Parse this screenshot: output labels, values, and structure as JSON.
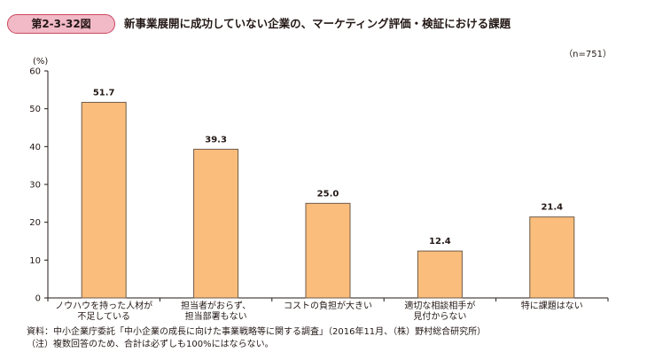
{
  "header": {
    "figure_number": "第2-3-32図",
    "title": "新事業展開に成功していない企業の、マーケティング評価・検証における課題"
  },
  "colors": {
    "bar": "#fbbd7c",
    "bar_border": "#6e5a48",
    "badge": "#f2b9c6",
    "badge_border": "#c9475f"
  },
  "chart_data": {
    "type": "bar",
    "unit_label": "(%)",
    "n_label": "（n=751）",
    "ylim": [
      0,
      60
    ],
    "yticks": [
      "0",
      "10",
      "20",
      "30",
      "40",
      "50",
      "60"
    ],
    "grid": false,
    "categories": [
      [
        "ノウハウを持った人材が",
        "不足している"
      ],
      [
        "担当者がおらず、",
        "担当部署もない"
      ],
      [
        "コストの負担が大きい"
      ],
      [
        "適切な相談相手が",
        "見付からない"
      ],
      [
        "特に課題はない"
      ]
    ],
    "values": [
      51.7,
      39.3,
      25.0,
      12.4,
      21.4
    ],
    "value_labels": [
      "51.7",
      "39.3",
      "25.0",
      "12.4",
      "21.4"
    ]
  },
  "footer": {
    "source": "資料：中小企業庁委託「中小企業の成長に向けた事業戦略等に関する調査」（2016年11月、（株）野村総合研究所）",
    "note": "（注）複数回答のため、合計は必ずしも100%にはならない。"
  }
}
